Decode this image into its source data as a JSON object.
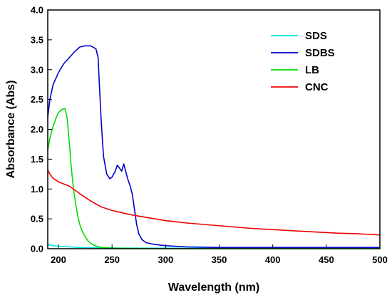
{
  "chart_data": {
    "type": "line",
    "xlabel": "Wavelength (nm)",
    "ylabel": "Absorbance (Abs)",
    "xlim": [
      190,
      500
    ],
    "ylim": [
      0,
      4.0
    ],
    "x_ticks": [
      200,
      250,
      300,
      350,
      400,
      450,
      500
    ],
    "y_ticks": [
      0.0,
      0.5,
      1.0,
      1.5,
      2.0,
      2.5,
      3.0,
      3.5,
      4.0
    ],
    "x_tick_labels": [
      "200",
      "250",
      "300",
      "350",
      "400",
      "450",
      "500"
    ],
    "y_tick_labels": [
      "0.0",
      "0.5",
      "1.0",
      "1.5",
      "2.0",
      "2.5",
      "3.0",
      "3.5",
      "4.0"
    ],
    "grid": false,
    "legend_position": "top-right",
    "series": [
      {
        "name": "SDS",
        "color": "#00e5e5",
        "points": [
          [
            190,
            0.07
          ],
          [
            195,
            0.05
          ],
          [
            200,
            0.04
          ],
          [
            210,
            0.03
          ],
          [
            220,
            0.02
          ],
          [
            240,
            0.015
          ],
          [
            260,
            0.01
          ],
          [
            300,
            0.01
          ],
          [
            400,
            0.005
          ],
          [
            500,
            0.005
          ]
        ]
      },
      {
        "name": "SDBS",
        "color": "#0000cc",
        "points": [
          [
            190,
            2.2
          ],
          [
            192,
            2.5
          ],
          [
            195,
            2.75
          ],
          [
            200,
            2.95
          ],
          [
            205,
            3.1
          ],
          [
            210,
            3.2
          ],
          [
            215,
            3.3
          ],
          [
            220,
            3.38
          ],
          [
            225,
            3.4
          ],
          [
            230,
            3.4
          ],
          [
            235,
            3.35
          ],
          [
            237,
            3.2
          ],
          [
            238,
            2.8
          ],
          [
            240,
            2.1
          ],
          [
            242,
            1.55
          ],
          [
            245,
            1.25
          ],
          [
            248,
            1.17
          ],
          [
            250,
            1.2
          ],
          [
            253,
            1.3
          ],
          [
            255,
            1.4
          ],
          [
            257,
            1.35
          ],
          [
            259,
            1.3
          ],
          [
            261,
            1.42
          ],
          [
            263,
            1.28
          ],
          [
            265,
            1.15
          ],
          [
            267,
            1.05
          ],
          [
            269,
            0.9
          ],
          [
            271,
            0.65
          ],
          [
            273,
            0.4
          ],
          [
            275,
            0.25
          ],
          [
            278,
            0.15
          ],
          [
            282,
            0.1
          ],
          [
            290,
            0.07
          ],
          [
            300,
            0.05
          ],
          [
            320,
            0.03
          ],
          [
            350,
            0.02
          ],
          [
            400,
            0.02
          ],
          [
            450,
            0.02
          ],
          [
            500,
            0.02
          ]
        ]
      },
      {
        "name": "LB",
        "color": "#00dd00",
        "points": [
          [
            190,
            1.65
          ],
          [
            192,
            1.85
          ],
          [
            195,
            2.05
          ],
          [
            198,
            2.2
          ],
          [
            200,
            2.28
          ],
          [
            203,
            2.33
          ],
          [
            206,
            2.35
          ],
          [
            208,
            2.2
          ],
          [
            210,
            1.8
          ],
          [
            212,
            1.35
          ],
          [
            214,
            1.0
          ],
          [
            216,
            0.75
          ],
          [
            218,
            0.55
          ],
          [
            220,
            0.4
          ],
          [
            222,
            0.3
          ],
          [
            225,
            0.2
          ],
          [
            228,
            0.12
          ],
          [
            232,
            0.07
          ],
          [
            236,
            0.04
          ],
          [
            240,
            0.02
          ],
          [
            250,
            0.01
          ],
          [
            300,
            0.0
          ],
          [
            400,
            0.0
          ],
          [
            500,
            0.0
          ]
        ]
      },
      {
        "name": "CNC",
        "color": "#ee0000",
        "points": [
          [
            190,
            1.32
          ],
          [
            192,
            1.25
          ],
          [
            195,
            1.18
          ],
          [
            200,
            1.12
          ],
          [
            210,
            1.05
          ],
          [
            220,
            0.92
          ],
          [
            230,
            0.8
          ],
          [
            240,
            0.7
          ],
          [
            250,
            0.64
          ],
          [
            260,
            0.6
          ],
          [
            270,
            0.56
          ],
          [
            280,
            0.53
          ],
          [
            290,
            0.5
          ],
          [
            300,
            0.47
          ],
          [
            320,
            0.43
          ],
          [
            340,
            0.4
          ],
          [
            360,
            0.37
          ],
          [
            380,
            0.34
          ],
          [
            400,
            0.32
          ],
          [
            420,
            0.3
          ],
          [
            440,
            0.28
          ],
          [
            460,
            0.26
          ],
          [
            480,
            0.25
          ],
          [
            500,
            0.23
          ]
        ]
      }
    ]
  }
}
